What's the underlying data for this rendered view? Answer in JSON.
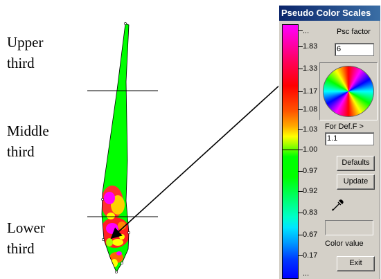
{
  "figure": {
    "labels": {
      "upper": "Upper\nthird",
      "middle": "Middle\nthird",
      "lower": "Lower\nthird"
    }
  },
  "window": {
    "title": "Pseudo Color Scales",
    "scale_labels": [
      "...",
      "1.83",
      "1.33",
      "1.17",
      "1.08",
      "1.03",
      "1.00",
      "0.97",
      "0.92",
      "0.83",
      "0.67",
      "0.17",
      "..."
    ],
    "psc_factor_label": "Psc factor",
    "psc_factor_value": "6",
    "def_f_label": "For Def.F >",
    "def_f_value": "1.1",
    "defaults_button": "Defaults",
    "update_button": "Update",
    "color_value_label": "Color value",
    "exit_button": "Exit"
  }
}
